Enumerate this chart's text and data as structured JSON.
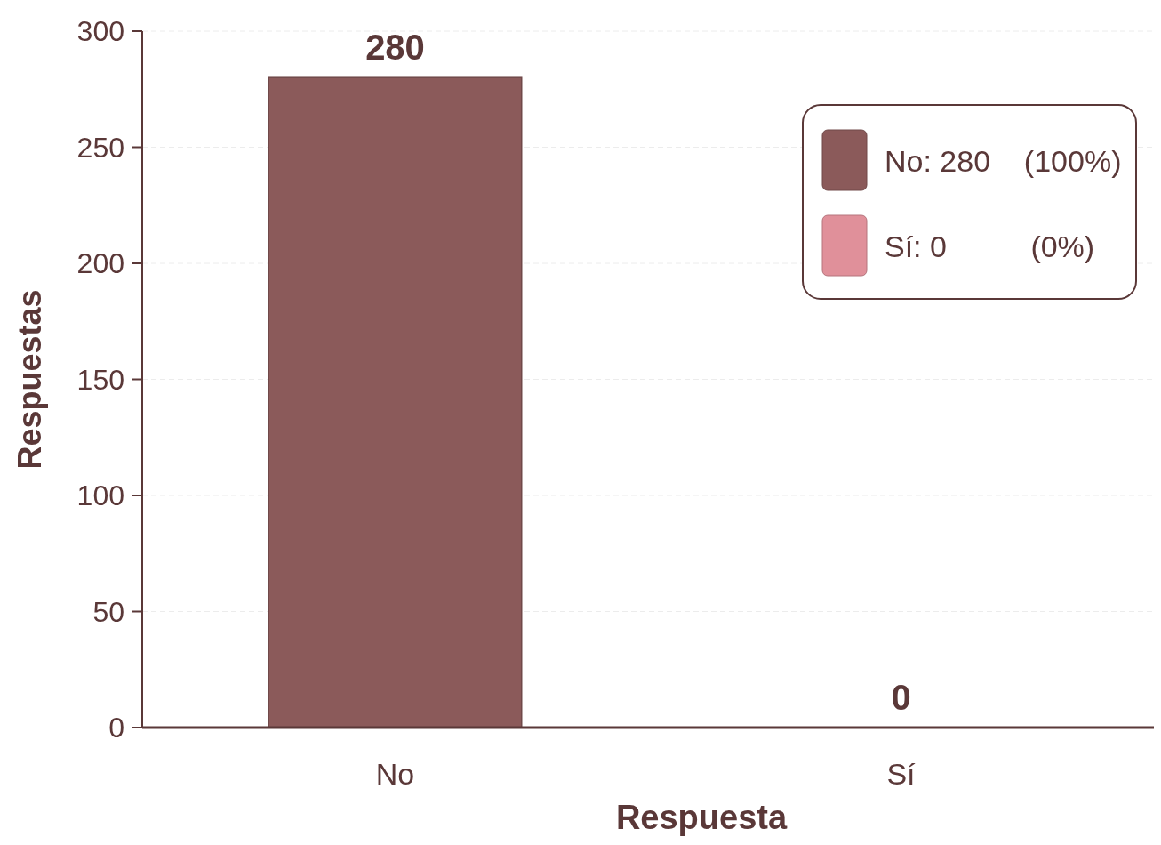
{
  "chart_data": {
    "type": "bar",
    "xlabel": "Respuesta",
    "ylabel": "Respuestas",
    "categories": [
      "No",
      "Sí"
    ],
    "series": [
      {
        "name": "No: 280    (100%)",
        "color": "#8b5a5a",
        "values": [
          280,
          null
        ]
      },
      {
        "name": "Sí: 0          (0%)",
        "color": "#e0909a",
        "values": [
          null,
          0
        ]
      }
    ],
    "ylim": [
      0,
      300
    ],
    "yticks": [
      0,
      50,
      100,
      150,
      200,
      250,
      300
    ],
    "grid": "y",
    "legend": "top right",
    "data_labels": true
  }
}
